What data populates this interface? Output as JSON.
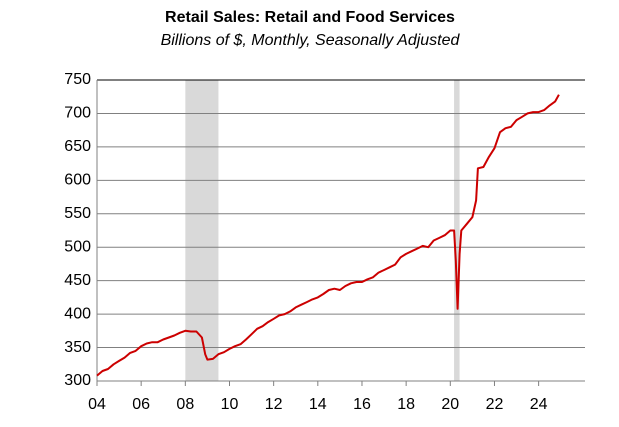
{
  "chart_data": {
    "type": "line",
    "title": "Retail Sales:  Retail and Food Services",
    "subtitle": "Billions of $, Monthly, Seasonally Adjusted",
    "color": "#cc0000",
    "shade_color": "#d9d9d9",
    "shaded_ranges": [
      [
        8.0,
        9.5
      ],
      [
        20.17,
        20.42
      ]
    ],
    "x": [
      4.0,
      4.25,
      4.5,
      4.75,
      5.0,
      5.25,
      5.5,
      5.75,
      6.0,
      6.25,
      6.5,
      6.75,
      7.0,
      7.25,
      7.5,
      7.75,
      8.0,
      8.25,
      8.5,
      8.75,
      8.9,
      9.0,
      9.25,
      9.5,
      9.75,
      10.0,
      10.25,
      10.5,
      10.75,
      11.0,
      11.25,
      11.5,
      11.75,
      12.0,
      12.25,
      12.5,
      12.75,
      13.0,
      13.25,
      13.5,
      13.75,
      14.0,
      14.25,
      14.5,
      14.75,
      15.0,
      15.25,
      15.5,
      15.75,
      16.0,
      16.25,
      16.5,
      16.75,
      17.0,
      17.25,
      17.5,
      17.75,
      18.0,
      18.25,
      18.5,
      18.75,
      19.0,
      19.25,
      19.5,
      19.75,
      20.0,
      20.17,
      20.25,
      20.33,
      20.42,
      20.5,
      20.75,
      21.0,
      21.17,
      21.25,
      21.5,
      21.75,
      22.0,
      22.25,
      22.5,
      22.75,
      23.0,
      23.25,
      23.5,
      23.75,
      24.0,
      24.25,
      24.5,
      24.75,
      24.92
    ],
    "values": [
      308,
      315,
      318,
      325,
      330,
      335,
      342,
      345,
      352,
      356,
      358,
      358,
      362,
      365,
      368,
      372,
      375,
      374,
      374,
      365,
      340,
      332,
      333,
      340,
      343,
      348,
      352,
      355,
      362,
      370,
      378,
      382,
      388,
      393,
      398,
      400,
      404,
      410,
      414,
      418,
      422,
      425,
      430,
      436,
      438,
      436,
      442,
      446,
      448,
      448,
      452,
      455,
      462,
      466,
      470,
      474,
      485,
      490,
      494,
      498,
      502,
      500,
      510,
      514,
      518,
      525,
      525,
      480,
      408,
      490,
      525,
      535,
      545,
      570,
      618,
      620,
      635,
      648,
      672,
      678,
      680,
      690,
      695,
      700,
      702,
      702,
      705,
      712,
      718,
      728
    ],
    "xlim": [
      4,
      26.1
    ],
    "xticks": [
      {
        "value": 4,
        "label": "04"
      },
      {
        "value": 6,
        "label": "06"
      },
      {
        "value": 8,
        "label": "08"
      },
      10,
      12,
      14,
      16,
      18,
      20,
      22,
      24
    ],
    "ylim": [
      300,
      750
    ],
    "yticks": [
      300,
      350,
      400,
      450,
      500,
      550,
      600,
      650,
      700,
      750
    ],
    "grid": true
  }
}
